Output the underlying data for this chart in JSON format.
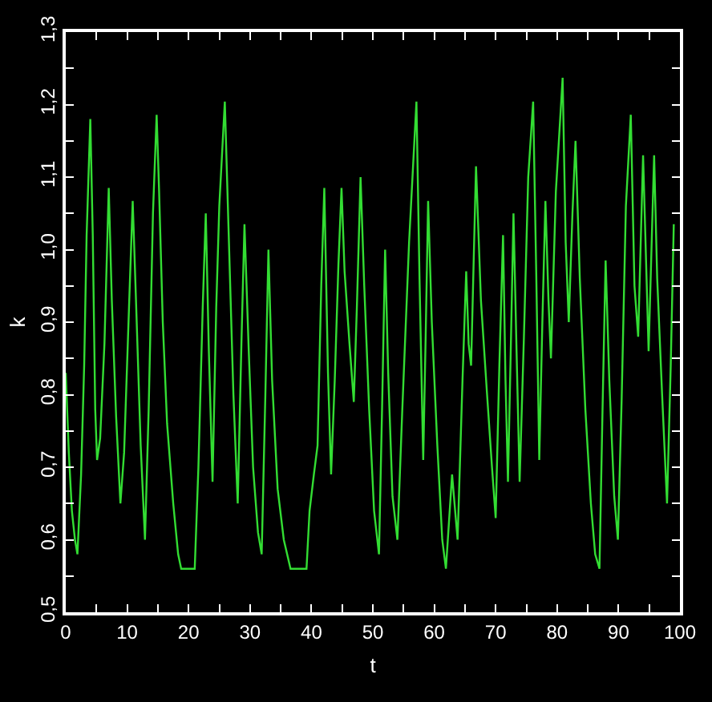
{
  "chart_data": {
    "type": "line",
    "xlabel": "t",
    "ylabel": "k",
    "color": "#33dd33",
    "xlim": [
      0,
      100
    ],
    "ylim": [
      0.5,
      1.3
    ],
    "xticks": [
      0,
      {
        "value": 5,
        "label": null
      },
      10,
      {
        "value": 15,
        "label": null
      },
      20,
      {
        "value": 25,
        "label": null
      },
      30,
      {
        "value": 35,
        "label": null
      },
      40,
      {
        "value": 45,
        "label": null
      },
      50,
      {
        "value": 55,
        "label": null
      },
      60,
      {
        "value": 65,
        "label": null
      },
      70,
      {
        "value": 75,
        "label": null
      },
      80,
      {
        "value": 85,
        "label": null
      },
      90,
      {
        "value": 95,
        "label": null
      },
      100
    ],
    "yticks": [
      {
        "value": 0.5,
        "label": "0,5"
      },
      {
        "value": 0.55,
        "label": null
      },
      {
        "value": 0.6,
        "label": "0,6"
      },
      {
        "value": 0.65,
        "label": null
      },
      {
        "value": 0.7,
        "label": "0,7"
      },
      {
        "value": 0.75,
        "label": null
      },
      {
        "value": 0.8,
        "label": "0,8"
      },
      {
        "value": 0.85,
        "label": null
      },
      {
        "value": 0.9,
        "label": "0,9"
      },
      {
        "value": 0.95,
        "label": null
      },
      {
        "value": 1.0,
        "label": "1,0"
      },
      {
        "value": 1.05,
        "label": null
      },
      {
        "value": 1.1,
        "label": "1,1"
      },
      {
        "value": 1.15,
        "label": null
      },
      {
        "value": 1.2,
        "label": "1,2"
      },
      {
        "value": 1.25,
        "label": null
      },
      {
        "value": 1.3,
        "label": "1,3"
      }
    ],
    "x": [
      0,
      0.5,
      1,
      1.5,
      1.9,
      2.5,
      3,
      3.4,
      4.0,
      4.4,
      4.8,
      5.1,
      5.6,
      6.3,
      7.0,
      7.5,
      8.2,
      8.9,
      9.5,
      10.3,
      10.9,
      11.4,
      12.2,
      12.9,
      13.5,
      14.2,
      14.8,
      15.2,
      15.8,
      16.5,
      17.5,
      18.3,
      18.8,
      21.0,
      21.6,
      22.3,
      22.8,
      23.3,
      23.9,
      24.5,
      25.0,
      25.9,
      26.5,
      27.3,
      28.0,
      28.6,
      29.1,
      29.8,
      30.5,
      31.3,
      31.9,
      32.5,
      33.0,
      33.6,
      34.5,
      35.5,
      36.6,
      39.2,
      39.7,
      40.4,
      41.0,
      41.6,
      42.1,
      42.7,
      43.2,
      43.8,
      44.4,
      44.9,
      45.4,
      46.2,
      46.9,
      47.4,
      48.0,
      48.6,
      49.4,
      50.2,
      51.0,
      51.5,
      52.0,
      52.5,
      53.2,
      54.0,
      54.8,
      55.9,
      57.1,
      57.6,
      58.2,
      58.6,
      59.0,
      59.6,
      60.5,
      61.3,
      61.9,
      62.9,
      63.8,
      64.6,
      65.2,
      65.6,
      66.0,
      66.8,
      67.6,
      68.6,
      69.4,
      70.0,
      70.6,
      71.2,
      71.6,
      72.0,
      72.5,
      72.9,
      73.4,
      73.9,
      74.6,
      75.3,
      76.1,
      76.6,
      77.1,
      77.6,
      78.1,
      78.6,
      79.0,
      79.8,
      80.9,
      81.4,
      81.9,
      82.5,
      83.0,
      83.7,
      84.6,
      85.5,
      86.2,
      86.9,
      87.4,
      87.9,
      88.5,
      89.3,
      89.9,
      90.5,
      91.2,
      92.0,
      92.6,
      93.2,
      94.0,
      94.9,
      95.8,
      96.3,
      97.1,
      97.9,
      98.5,
      99.0
    ],
    "values": [
      0.83,
      0.72,
      0.64,
      0.6,
      0.58,
      0.69,
      0.84,
      1.02,
      1.18,
      1.02,
      0.78,
      0.71,
      0.74,
      0.87,
      1.085,
      0.93,
      0.77,
      0.65,
      0.72,
      0.92,
      1.067,
      0.94,
      0.73,
      0.6,
      0.78,
      1.05,
      1.186,
      1.08,
      0.9,
      0.76,
      0.65,
      0.58,
      0.56,
      0.56,
      0.7,
      0.92,
      1.05,
      0.86,
      0.68,
      0.92,
      1.06,
      1.204,
      1.03,
      0.8,
      0.65,
      0.87,
      1.035,
      0.86,
      0.7,
      0.61,
      0.58,
      0.8,
      1.0,
      0.82,
      0.67,
      0.6,
      0.56,
      0.56,
      0.64,
      0.69,
      0.73,
      0.95,
      1.085,
      0.83,
      0.69,
      0.82,
      0.98,
      1.085,
      0.97,
      0.87,
      0.79,
      0.92,
      1.1,
      0.95,
      0.78,
      0.64,
      0.58,
      0.78,
      1.0,
      0.83,
      0.66,
      0.6,
      0.78,
      1.01,
      1.204,
      0.96,
      0.71,
      0.88,
      1.067,
      0.9,
      0.73,
      0.6,
      0.56,
      0.69,
      0.6,
      0.82,
      0.97,
      0.87,
      0.84,
      1.115,
      0.93,
      0.8,
      0.7,
      0.63,
      0.84,
      1.02,
      0.82,
      0.68,
      0.88,
      1.05,
      0.86,
      0.68,
      0.88,
      1.1,
      1.204,
      0.97,
      0.71,
      0.9,
      1.067,
      0.93,
      0.85,
      1.08,
      1.237,
      1.01,
      0.9,
      1.05,
      1.15,
      0.96,
      0.78,
      0.65,
      0.58,
      0.56,
      0.78,
      0.985,
      0.82,
      0.66,
      0.6,
      0.79,
      1.06,
      1.186,
      0.95,
      0.88,
      1.13,
      0.86,
      1.13,
      0.96,
      0.8,
      0.65,
      0.84,
      1.035
    ]
  }
}
